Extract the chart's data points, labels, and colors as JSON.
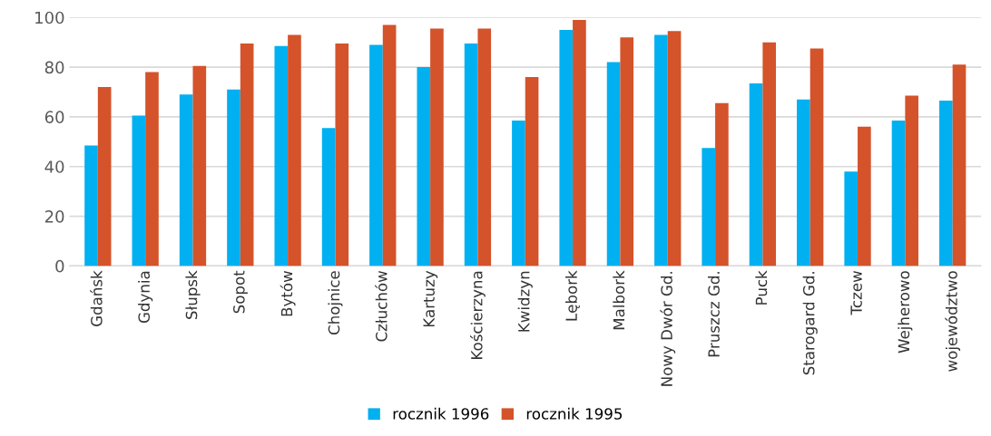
{
  "chart_data": {
    "type": "bar",
    "categories": [
      "Gdańsk",
      "Gdynia",
      "Słupsk",
      "Sopot",
      "Bytów",
      "Chojnice",
      "Człuchów",
      "Kartuzy",
      "Kościerzyna",
      "Kwidzyn",
      "Lębork",
      "Malbork",
      "Nowy Dwór Gd.",
      "Pruszcz Gd.",
      "Puck",
      "Starogard Gd.",
      "Tczew",
      "Wejherowo",
      "województwo"
    ],
    "series": [
      {
        "name": "rocznik 1996",
        "color": "#00b0f0",
        "values": [
          48.5,
          60.5,
          69,
          71,
          88.5,
          55.5,
          89,
          80,
          89.5,
          58.5,
          95,
          82,
          93,
          47.5,
          73.5,
          67,
          38,
          58.5,
          66.5
        ]
      },
      {
        "name": "rocznik 1995",
        "color": "#d4532a",
        "values": [
          72,
          78,
          80.5,
          89.5,
          93,
          89.5,
          97,
          95.5,
          95.5,
          76,
          99,
          92,
          94.5,
          65.5,
          90,
          87.5,
          56,
          68.5,
          81
        ]
      }
    ],
    "ylim": [
      0,
      100
    ],
    "yticks": [
      0,
      20,
      40,
      60,
      80,
      100
    ],
    "grid": "y",
    "legend": "bottom"
  }
}
